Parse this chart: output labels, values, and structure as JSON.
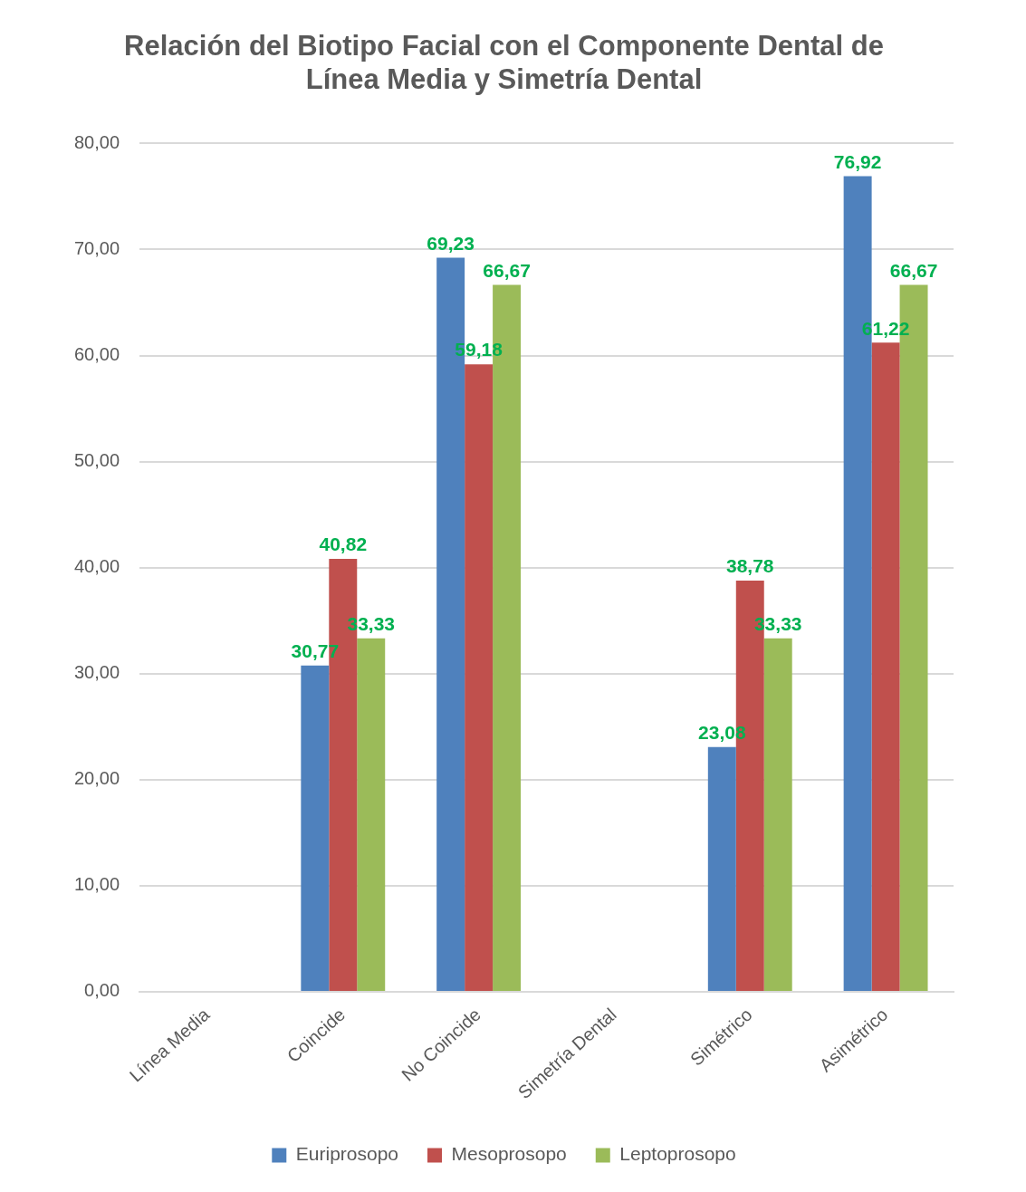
{
  "chart_data": {
    "type": "bar",
    "title": "Relación del Biotipo Facial con el Componente Dental de Línea Media y Simetría Dental",
    "categories": [
      "Línea Media",
      "Coincide",
      "No Coincide",
      "Simetría Dental",
      "Simétrico",
      "Asimétrico"
    ],
    "series": [
      {
        "name": "Euriprosopo",
        "color": "#4f81bd",
        "values": [
          null,
          30.77,
          69.23,
          null,
          23.08,
          76.92
        ],
        "value_labels": [
          null,
          "30,77",
          "69,23",
          null,
          "23,08",
          "76,92"
        ]
      },
      {
        "name": "Mesoprosopo",
        "color": "#c0504d",
        "values": [
          null,
          40.82,
          59.18,
          null,
          38.78,
          61.22
        ],
        "value_labels": [
          null,
          "40,82",
          "59,18",
          null,
          "38,78",
          "61,22"
        ]
      },
      {
        "name": "Leptoprosopo",
        "color": "#9bbb59",
        "values": [
          null,
          33.33,
          66.67,
          null,
          33.33,
          66.67
        ],
        "value_labels": [
          null,
          "33,33",
          "66,67",
          null,
          "33,33",
          "66,67"
        ]
      }
    ],
    "ylim": [
      0,
      80
    ],
    "yticks": [
      {
        "value": 0,
        "label": "0,00"
      },
      {
        "value": 10,
        "label": "10,00"
      },
      {
        "value": 20,
        "label": "20,00"
      },
      {
        "value": 30,
        "label": "30,00"
      },
      {
        "value": 40,
        "label": "40,00"
      },
      {
        "value": 50,
        "label": "50,00"
      },
      {
        "value": 60,
        "label": "60,00"
      },
      {
        "value": 70,
        "label": "70,00"
      },
      {
        "value": 80,
        "label": "80,00"
      }
    ],
    "grid": "y",
    "legend": "bottom"
  }
}
